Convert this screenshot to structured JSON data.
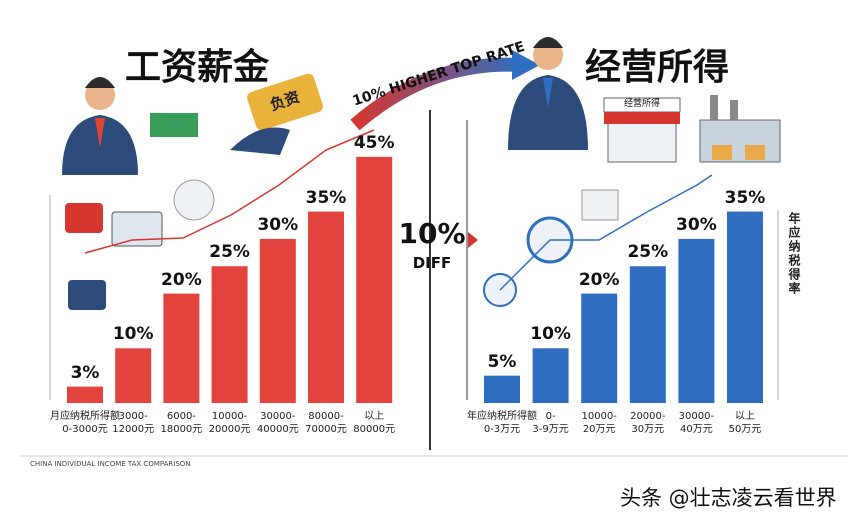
{
  "chart_data": [
    {
      "type": "bar",
      "title": "工资薪金",
      "categories": [
        "月应纳税所得额\n0-3000元",
        "3000-\n12000元",
        "6000-\n18000元",
        "10000-\n20000元",
        "30000-\n40000元",
        "80000-\n70000元",
        "以上\n80000元"
      ],
      "values": [
        3,
        10,
        20,
        25,
        30,
        35,
        45
      ],
      "value_labels": [
        "3%",
        "10%",
        "20%",
        "25%",
        "30%",
        "35%",
        "45%"
      ],
      "color": "#e2433d"
    },
    {
      "type": "bar",
      "title": "经营所得",
      "categories": [
        "年应纳税所得额\n0-3万元",
        "0-\n3-9万元",
        "10000-\n20万元",
        "20000-\n30万元",
        "30000-\n40万元",
        "以上\n50万元"
      ],
      "values": [
        5,
        10,
        20,
        25,
        30,
        35
      ],
      "value_labels": [
        "5%",
        "10%",
        "20%",
        "25%",
        "30%",
        "35%"
      ],
      "color": "#2f6ec0",
      "y_label": "年应纳税得率"
    }
  ],
  "banner": {
    "arrow_text": "10% HIGHER TOP RATE",
    "diff_value": "10%",
    "diff_label": "DIFF"
  },
  "icons": {
    "bag": "负资",
    "shop_sign": "经营所得"
  },
  "footer": "CHINA INDIVIDUAL INCOME TAX COMPARISON",
  "watermark": "头条 @壮志凌云看世界"
}
